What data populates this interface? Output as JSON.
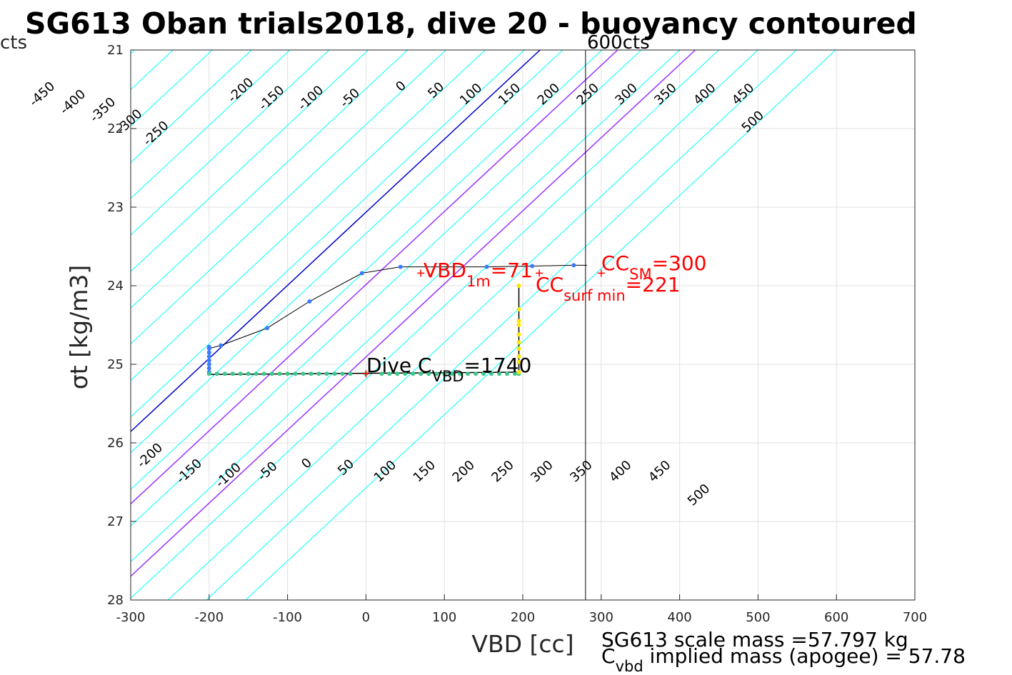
{
  "title": "SG613 Oban trials2018, dive 20 - buoyancy contoured",
  "top_left_label": "cts",
  "vline_label": "600cts",
  "footer": {
    "line1": "SG613 scale mass =57.797 kg",
    "line2_main": "C",
    "line2_sub": "vbd",
    "line2_rest": " implied mass (apogee) = 57.78"
  },
  "annotations": {
    "vbd1m_main": "VBD",
    "vbd1m_sub": "1m",
    "vbd1m_rest": "=71",
    "ccsm_main": "CC",
    "ccsm_sub": "SM",
    "ccsm_rest": "=300",
    "ccsurf_main": "CC",
    "ccsurf_sub": "surf min",
    "ccsurf_rest": "=221",
    "dive_main": "Dive C",
    "dive_sub": "VBD",
    "dive_rest": "=1740"
  },
  "chart_data": {
    "type": "line",
    "title": "SG613 Oban trials2018, dive 20 - buoyancy contoured",
    "xlabel": "VBD [cc]",
    "ylabel": "σt [kg/m3]",
    "xlim": [
      -300,
      700
    ],
    "ylim": [
      21,
      28
    ],
    "y_reversed": true,
    "grid": true,
    "xticks": [
      -300,
      -200,
      -100,
      0,
      100,
      200,
      300,
      400,
      500,
      600,
      700
    ],
    "yticks": [
      21,
      22,
      23,
      24,
      25,
      26,
      27,
      28
    ],
    "colors": {
      "contour": "#00ffff",
      "zero_contour": "#0000cd",
      "purple_contour": "#9b30ff",
      "profile_line": "#000000",
      "marker_red": "#ff0000",
      "descent_blue": "#3a7bff",
      "bottom_green": "#3cc88c",
      "ascent_yellow": "#ffe600"
    },
    "contour_slope_cc_per_sigma": 107.5,
    "contours_upper": {
      "values": [
        -450,
        -400,
        -350,
        -300,
        -250,
        -200,
        -150,
        -100,
        -50,
        0,
        50,
        100,
        150,
        200,
        250,
        300,
        350,
        400,
        450,
        500
      ],
      "x_at_sigma21": [
        -345,
        -295,
        -246,
        -196,
        -146,
        -97,
        -47,
        3,
        53,
        102,
        152,
        202,
        251,
        301,
        351,
        400,
        450,
        500,
        549,
        599
      ],
      "label_sigma": [
        21.6,
        21.7,
        21.8,
        21.95,
        22.1,
        21.55,
        21.65,
        21.65,
        21.65,
        21.5,
        21.55,
        21.6,
        21.6,
        21.6,
        21.6,
        21.6,
        21.6,
        21.6,
        21.6,
        21.95
      ]
    },
    "contours_lower": {
      "values": [
        -200,
        -150,
        -100,
        -50,
        0,
        50,
        100,
        150,
        200,
        250,
        300,
        350,
        400,
        450,
        500
      ],
      "label_x": [
        -272,
        -222,
        -172,
        -122,
        -72,
        -22,
        28,
        78,
        128,
        178,
        228,
        278,
        328,
        378,
        428
      ],
      "label_sigma": [
        26.2,
        26.4,
        26.45,
        26.4,
        26.3,
        26.35,
        26.4,
        26.4,
        26.4,
        26.4,
        26.4,
        26.4,
        26.4,
        26.4,
        26.7
      ]
    },
    "special_contours": [
      {
        "name": "0",
        "color": "zero_contour",
        "x_at_sigma21": 222
      },
      {
        "name": "100",
        "color": "purple_contour",
        "x_at_sigma21": 321
      },
      {
        "name": "200",
        "color": "purple_contour",
        "x_at_sigma21": 420
      }
    ],
    "vertical_line_x": 280,
    "profile_line": {
      "x": [
        -200,
        -200,
        -185,
        -126,
        -72,
        -5,
        44,
        154,
        212,
        265,
        282
      ],
      "y": [
        25.1,
        24.8,
        24.76,
        24.54,
        24.2,
        23.84,
        23.76,
        23.76,
        23.75,
        23.74,
        23.74
      ]
    },
    "bottom_line": {
      "x": [
        -200,
        195
      ],
      "y": [
        25.13,
        25.1
      ]
    },
    "ascent_line": {
      "x": [
        195,
        195
      ],
      "y": [
        25.1,
        24.0
      ]
    },
    "descent_points": {
      "x": [
        -200,
        -200,
        -200,
        -200,
        -200,
        -200,
        -200,
        -200,
        -185,
        -126,
        -72,
        -5,
        44,
        154,
        212,
        265
      ],
      "y": [
        25.1,
        25.05,
        25.0,
        24.95,
        24.9,
        24.85,
        24.8,
        24.78,
        24.76,
        24.54,
        24.2,
        23.84,
        23.76,
        23.76,
        23.75,
        23.74
      ]
    },
    "bottom_points": {
      "x": [
        -200,
        -190,
        -180,
        -170,
        -160,
        -150,
        -140,
        -130,
        -120,
        -110,
        -100,
        -90,
        -80,
        -70,
        -60,
        -50,
        -40,
        -30,
        -20,
        0,
        20,
        30,
        40,
        50,
        60,
        70,
        80,
        90,
        100,
        110,
        120,
        130,
        140,
        150,
        160,
        170,
        180,
        190,
        195
      ],
      "y": [
        25.12,
        25.12,
        25.12,
        25.12,
        25.12,
        25.12,
        25.12,
        25.12,
        25.12,
        25.12,
        25.12,
        25.12,
        25.12,
        25.12,
        25.12,
        25.12,
        25.12,
        25.12,
        25.12,
        25.12,
        25.12,
        25.12,
        25.12,
        25.12,
        25.12,
        25.12,
        25.12,
        25.12,
        25.12,
        25.12,
        25.12,
        25.12,
        25.12,
        25.12,
        25.12,
        25.12,
        25.12,
        25.12,
        25.12
      ]
    },
    "ascent_points": {
      "x": [
        195,
        195,
        195,
        195,
        195,
        195,
        195,
        195,
        195,
        195
      ],
      "y": [
        25.1,
        24.97,
        24.9,
        24.8,
        24.72,
        24.62,
        24.5,
        24.45,
        24.3,
        24.0
      ]
    },
    "markers": [
      {
        "name": "vbd-1m-marker",
        "x": 70,
        "y": 23.84,
        "color": "marker_red"
      },
      {
        "name": "cc-sm-marker",
        "x": 300,
        "y": 23.84,
        "color": "marker_red"
      },
      {
        "name": "dive-marker",
        "x": 0,
        "y": 25.12,
        "color": "marker_red"
      },
      {
        "name": "cc-surf-marker",
        "x": 221,
        "y": 23.84,
        "color": "marker_red"
      }
    ]
  }
}
